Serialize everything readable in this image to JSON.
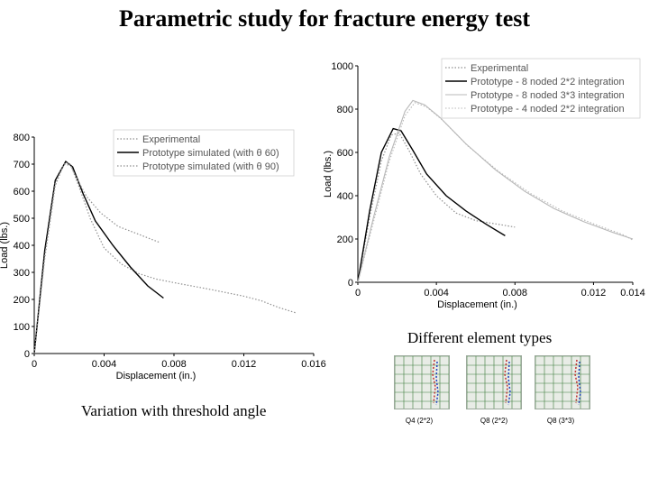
{
  "page": {
    "title": "Parametric study for fracture energy test",
    "left_caption": "Variation with threshold angle",
    "right_caption": "Different element types",
    "thumbnails": [
      {
        "label": "Q4 (2*2)"
      },
      {
        "label": "Q8 (2*2)"
      },
      {
        "label": "Q8 (3*3)"
      }
    ]
  },
  "colors": {
    "experimental": "#909090",
    "primary": "#000000",
    "secondary": "#b8b8b8"
  },
  "chart_data": [
    {
      "type": "line",
      "title": "",
      "xlabel": "Displacement (in.)",
      "ylabel": "Load (lbs.)",
      "xlim": [
        0,
        0.016
      ],
      "ylim": [
        0,
        800
      ],
      "xticks": [
        0,
        0.004,
        0.008,
        0.012,
        0.016
      ],
      "xtick_labels": [
        "0",
        "0.004",
        "0.008",
        "0.012",
        "0.016"
      ],
      "yticks": [
        0,
        100,
        200,
        300,
        400,
        500,
        600,
        700,
        800
      ],
      "ytick_labels": [
        "0",
        "100",
        "200",
        "300",
        "400",
        "500",
        "600",
        "700",
        "800"
      ],
      "legend_position": "top-right",
      "series": [
        {
          "name": "Experimental",
          "style": "dotted",
          "x": [
            0,
            0.0006,
            0.0012,
            0.0017,
            0.0021,
            0.0026,
            0.0032,
            0.004,
            0.005,
            0.006,
            0.007,
            0.008,
            0.009,
            0.01,
            0.011,
            0.012,
            0.013,
            0.014,
            0.015
          ],
          "y": [
            0,
            350,
            620,
            700,
            695,
            610,
            500,
            390,
            330,
            295,
            275,
            262,
            250,
            238,
            225,
            212,
            195,
            170,
            150
          ]
        },
        {
          "name": "Prototype simulated (with θ 60)",
          "style": "solid",
          "x": [
            0,
            0.0006,
            0.0012,
            0.0018,
            0.0022,
            0.0028,
            0.0035,
            0.0045,
            0.0055,
            0.0065,
            0.0074
          ],
          "y": [
            0,
            380,
            640,
            710,
            690,
            590,
            490,
            400,
            320,
            250,
            205
          ]
        },
        {
          "name": "Prototype simulated (with θ 90)",
          "style": "dotted",
          "x": [
            0,
            0.0006,
            0.0012,
            0.0017,
            0.002,
            0.0025,
            0.003,
            0.0038,
            0.0048,
            0.006,
            0.0072
          ],
          "y": [
            0,
            360,
            630,
            700,
            705,
            640,
            580,
            520,
            470,
            440,
            410
          ]
        }
      ]
    },
    {
      "type": "line",
      "title": "",
      "xlabel": "Displacement (in.)",
      "ylabel": "Load (lbs.)",
      "xlim": [
        0,
        0.014
      ],
      "ylim": [
        0,
        1000
      ],
      "xticks": [
        0,
        0.004,
        0.008,
        0.012,
        0.014
      ],
      "xtick_labels": [
        "0",
        "0.004",
        "0.008",
        "0.012",
        "0.014"
      ],
      "yticks": [
        0,
        200,
        400,
        600,
        800,
        1000
      ],
      "ytick_labels": [
        "0",
        "200",
        "400",
        "600",
        "800",
        "1000"
      ],
      "legend_position": "top-right",
      "series": [
        {
          "name": "Experimental",
          "style": "dotted",
          "x": [
            0,
            0.0006,
            0.0012,
            0.0017,
            0.0021,
            0.0026,
            0.0032,
            0.004,
            0.005,
            0.006,
            0.007,
            0.008
          ],
          "y": [
            0,
            300,
            560,
            680,
            690,
            610,
            500,
            400,
            320,
            285,
            270,
            255
          ]
        },
        {
          "name": "Prototype - 8 noded 2*2 integration",
          "style": "solid",
          "x": [
            0,
            0.0006,
            0.0012,
            0.0018,
            0.0022,
            0.0028,
            0.0035,
            0.0045,
            0.0055,
            0.0065,
            0.0075
          ],
          "y": [
            0,
            330,
            600,
            710,
            700,
            610,
            500,
            400,
            330,
            270,
            215
          ]
        },
        {
          "name": "Prototype - 8 noded 3*3 integration",
          "style": "solid-light",
          "x": [
            0,
            0.0008,
            0.0016,
            0.0024,
            0.0028,
            0.0034,
            0.0042,
            0.0055,
            0.007,
            0.0085,
            0.01,
            0.0115,
            0.013,
            0.014
          ],
          "y": [
            0,
            300,
            580,
            790,
            840,
            820,
            760,
            640,
            520,
            420,
            340,
            280,
            230,
            200
          ]
        },
        {
          "name": "Prototype - 4 noded 2*2 integration",
          "style": "dotted-light",
          "x": [
            0,
            0.0008,
            0.0016,
            0.0024,
            0.0029,
            0.0035,
            0.0043,
            0.0056,
            0.0072,
            0.0088,
            0.0104,
            0.012,
            0.0135,
            0.014
          ],
          "y": [
            0,
            280,
            560,
            770,
            830,
            810,
            750,
            630,
            510,
            410,
            330,
            270,
            220,
            195
          ]
        }
      ]
    }
  ]
}
